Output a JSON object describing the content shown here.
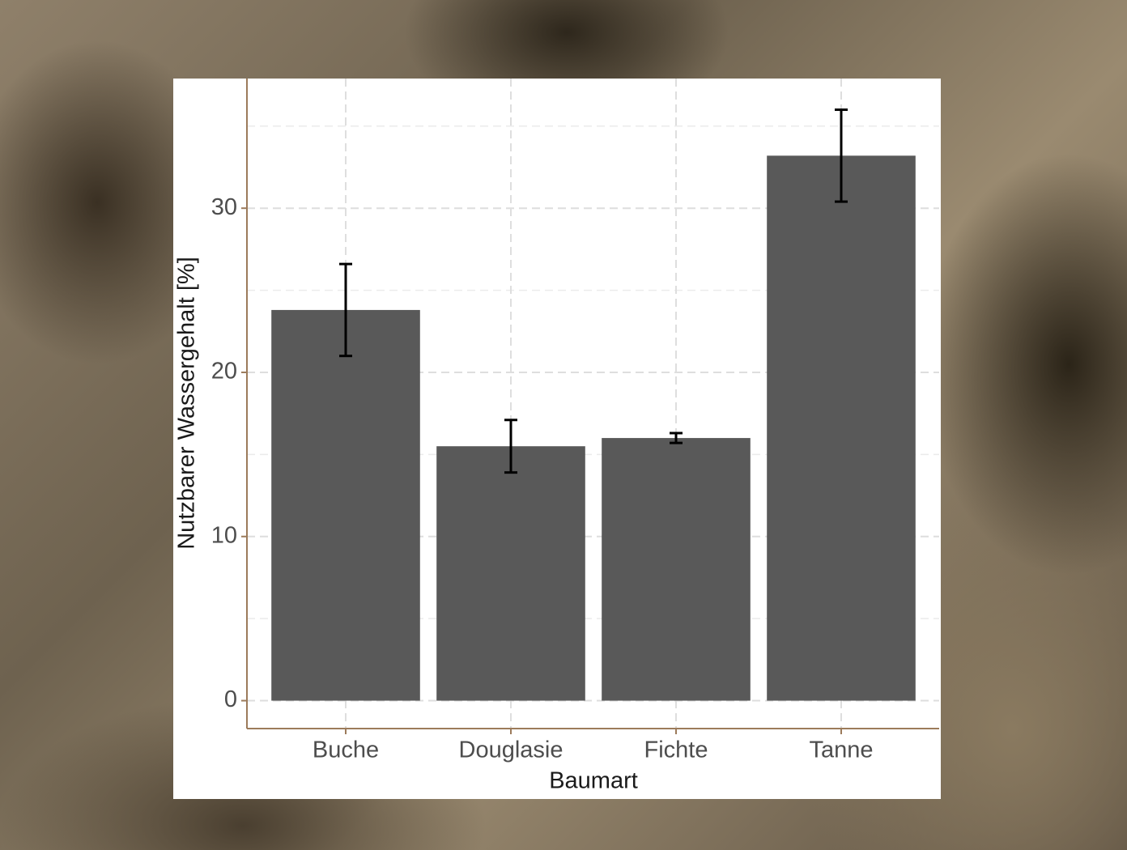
{
  "chart_data": {
    "type": "bar",
    "x_label": "Baumart",
    "y_label": "Nutzbarer Wassergehalt [%]",
    "categories": [
      "Buche",
      "Douglasie",
      "Fichte",
      "Tanne"
    ],
    "values": [
      23.8,
      15.5,
      16.0,
      33.2
    ],
    "errors": [
      2.8,
      1.6,
      0.3,
      2.8
    ],
    "color": "#595959",
    "ylim": [
      -1.7,
      37.9
    ],
    "yticks": [
      0,
      10,
      20,
      30
    ],
    "minor_yticks": [
      5,
      15,
      25,
      35
    ],
    "grid": true
  }
}
